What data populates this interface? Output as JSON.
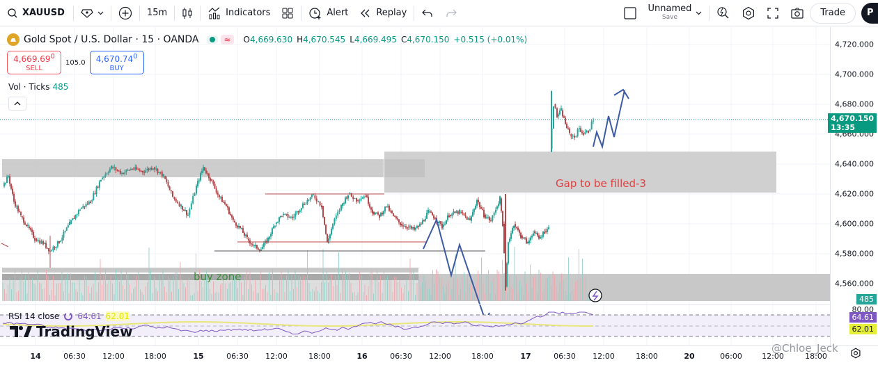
{
  "toolbar": {
    "symbol": "XAUUSD",
    "interval": "15m",
    "indicators_label": "Indicators",
    "alert_label": "Alert",
    "replay_label": "Replay",
    "layout_name": "Unnamed",
    "layout_sub": "Save",
    "trade_label": "Trade",
    "publish_label": "P"
  },
  "legend": {
    "title": "Gold Spot / U.S. Dollar · 15 · OANDA",
    "open_label": "O",
    "open": "4,669.630",
    "high_label": "H",
    "high": "4,670.545",
    "low_label": "L",
    "low": "4,669.495",
    "close_label": "C",
    "close": "4,670.150",
    "change": "+0.515 (+0.01%)",
    "sell_price": "4,669.69",
    "sell_sup": "0",
    "sell_label": "SELL",
    "spread": "105.0",
    "buy_price": "4,670.74",
    "buy_sup": "0",
    "buy_label": "BUY"
  },
  "volume": {
    "label": "Vol · Ticks",
    "value": "485"
  },
  "rsi": {
    "label": "RSI 14 close",
    "value": "64.61",
    "ma_value": "62.01"
  },
  "branding": {
    "logo_text": "TradingView"
  },
  "price_scale": {
    "labels": [
      "4,720.000",
      "4,700.000",
      "4,680.000",
      "4,660.000",
      "4,640.000",
      "4,620.000",
      "4,600.000",
      "4,580.000",
      "4,560.000"
    ],
    "current_price": "4,670.150",
    "countdown": "13:35",
    "volume_badge": "485",
    "rsi_upper": "80.00",
    "rsi_badge": "64.61",
    "rsi_ma_badge": "62.01"
  },
  "time_axis": {
    "labels": [
      {
        "t": "14",
        "bold": true
      },
      {
        "t": "06:30"
      },
      {
        "t": "12:00"
      },
      {
        "t": "18:00"
      },
      {
        "t": "15",
        "bold": true
      },
      {
        "t": "06:30"
      },
      {
        "t": "12:00"
      },
      {
        "t": "18:00"
      },
      {
        "t": "16",
        "bold": true
      },
      {
        "t": "06:30"
      },
      {
        "t": "12:00"
      },
      {
        "t": "18:00"
      },
      {
        "t": "17",
        "bold": true
      },
      {
        "t": "06:30"
      },
      {
        "t": "12:00"
      },
      {
        "t": "18:00"
      },
      {
        "t": "20",
        "bold": true
      },
      {
        "t": "06:00"
      },
      {
        "t": "12:00"
      },
      {
        "t": "18:00"
      }
    ]
  },
  "annotations": {
    "gap_text": "Gap to be filled-3",
    "buy_zone_text": "buy zone",
    "watermark": "@Chloe_Jeck"
  },
  "colors": {
    "up": "#26a69a",
    "down": "#b34a4e",
    "zone": "#c8c8c8",
    "arrow": "#3c5aa6",
    "gap_text": "#e0403f",
    "buy_zone_text": "#3a8c3a",
    "price_badge": "#089981",
    "rsi_line": "#7e57c2",
    "rsi_ma": "#e8e67a"
  }
}
